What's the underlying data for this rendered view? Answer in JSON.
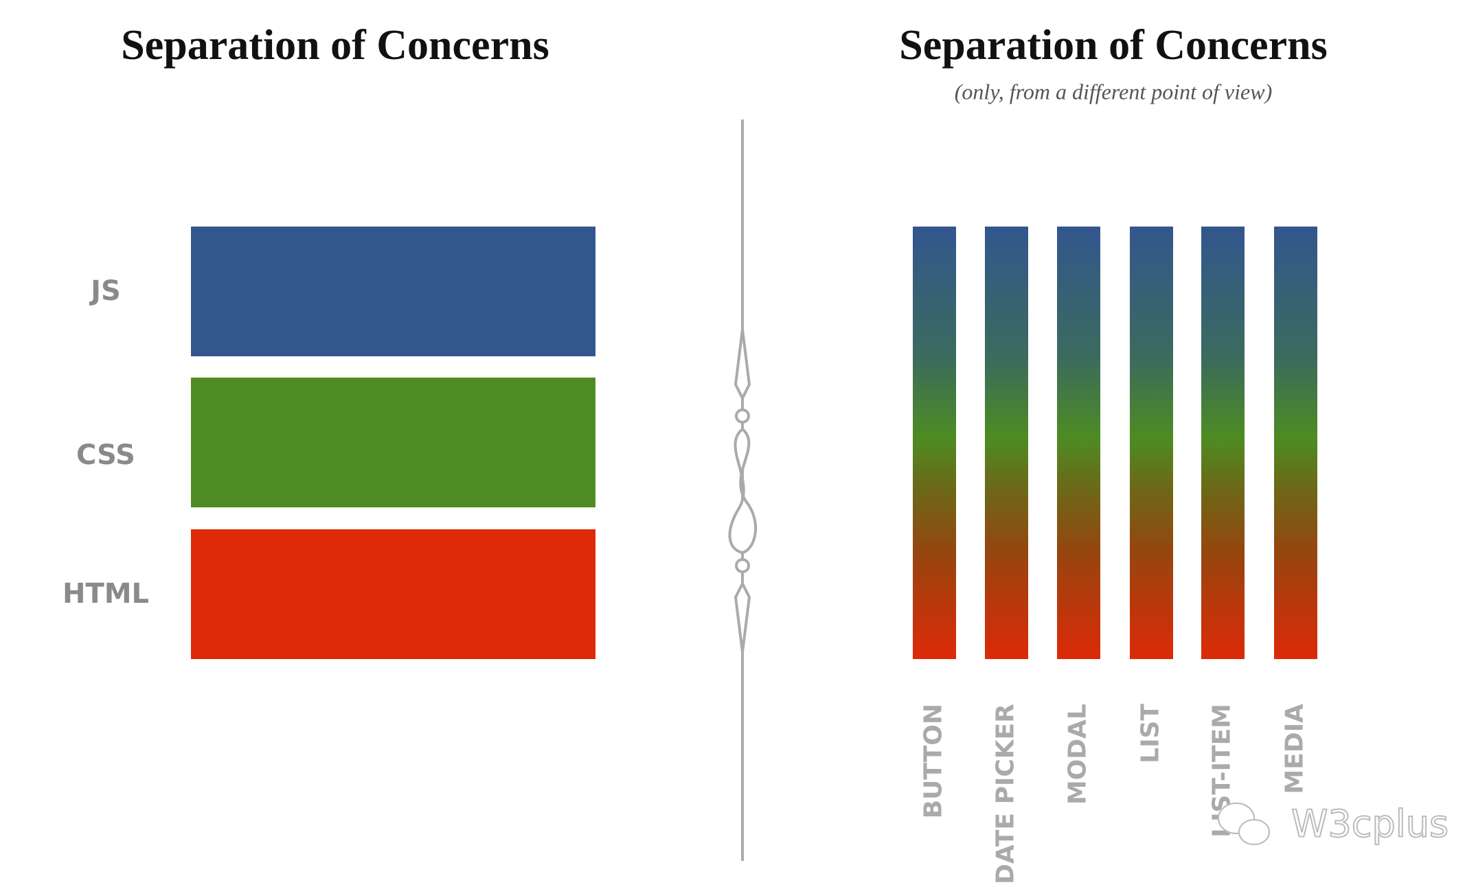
{
  "left": {
    "title": "Separation of Concerns",
    "layers": [
      "JS",
      "CSS",
      "HTML"
    ]
  },
  "right": {
    "title": "Separation of Concerns",
    "subtitle": "(only, from a different point of view)",
    "components": [
      "BUTTON",
      "DATE PICKER",
      "MODAL",
      "LIST",
      "LIST-ITEM",
      "MEDIA"
    ]
  },
  "watermark": "W3cplus"
}
